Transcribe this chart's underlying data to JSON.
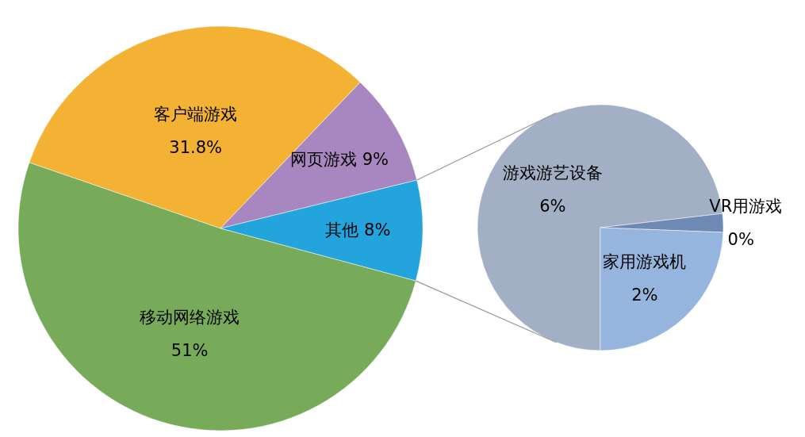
{
  "chart_data": [
    {
      "type": "pie",
      "categories": [
        "客户端游戏",
        "网页游戏",
        "其他",
        "移动网络游戏"
      ],
      "values": [
        31.8,
        9,
        8,
        51
      ],
      "colors": [
        "#f3b234",
        "#a887c0",
        "#24a4dc",
        "#77ab59"
      ],
      "value_labels": [
        "31.8%",
        "9%",
        "8%",
        "51%"
      ]
    },
    {
      "type": "pie",
      "categories": [
        "游戏游艺设备",
        "VR用游戏",
        "家用游戏机"
      ],
      "values": [
        6,
        0.2,
        2
      ],
      "colors": [
        "#a2afc4",
        "#6e89b6",
        "#96b5de"
      ],
      "value_labels": [
        "6%",
        "0%",
        "2%"
      ]
    }
  ]
}
